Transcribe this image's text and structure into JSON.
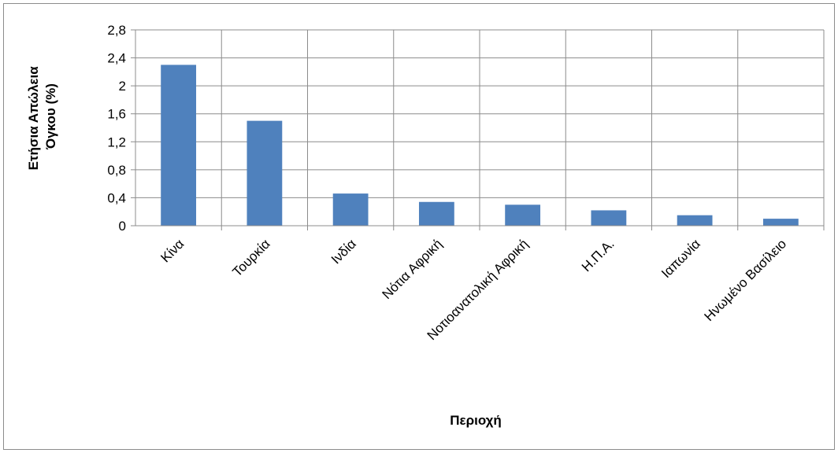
{
  "chart_data": {
    "type": "bar",
    "categories": [
      "Κίνα",
      "Τουρκία",
      "Ινδία",
      "Νότια Αφρική",
      "Νοτιοανατολική Αφρική",
      "Η.Π.Α.",
      "Ιαπωνία",
      "Ηνωμένο Βασίλειο"
    ],
    "values": [
      2.3,
      1.5,
      0.46,
      0.34,
      0.3,
      0.22,
      0.15,
      0.1
    ],
    "ylim": [
      0,
      2.8
    ],
    "yticks": [
      0,
      0.4,
      0.8,
      1.2,
      1.6,
      2,
      2.4,
      2.8
    ],
    "ytick_labels": [
      "0",
      "0,4",
      "0,8",
      "1,2",
      "1,6",
      "2",
      "2,4",
      "2,8"
    ],
    "xlabel": "Περιοχή",
    "ylabel_lines": [
      "Ετήσια Απώλεια",
      "Όγκου (%)"
    ],
    "grid": true,
    "legend": "none",
    "bar_color": "#4f81bd",
    "grid_color": "#8c8c8c"
  }
}
